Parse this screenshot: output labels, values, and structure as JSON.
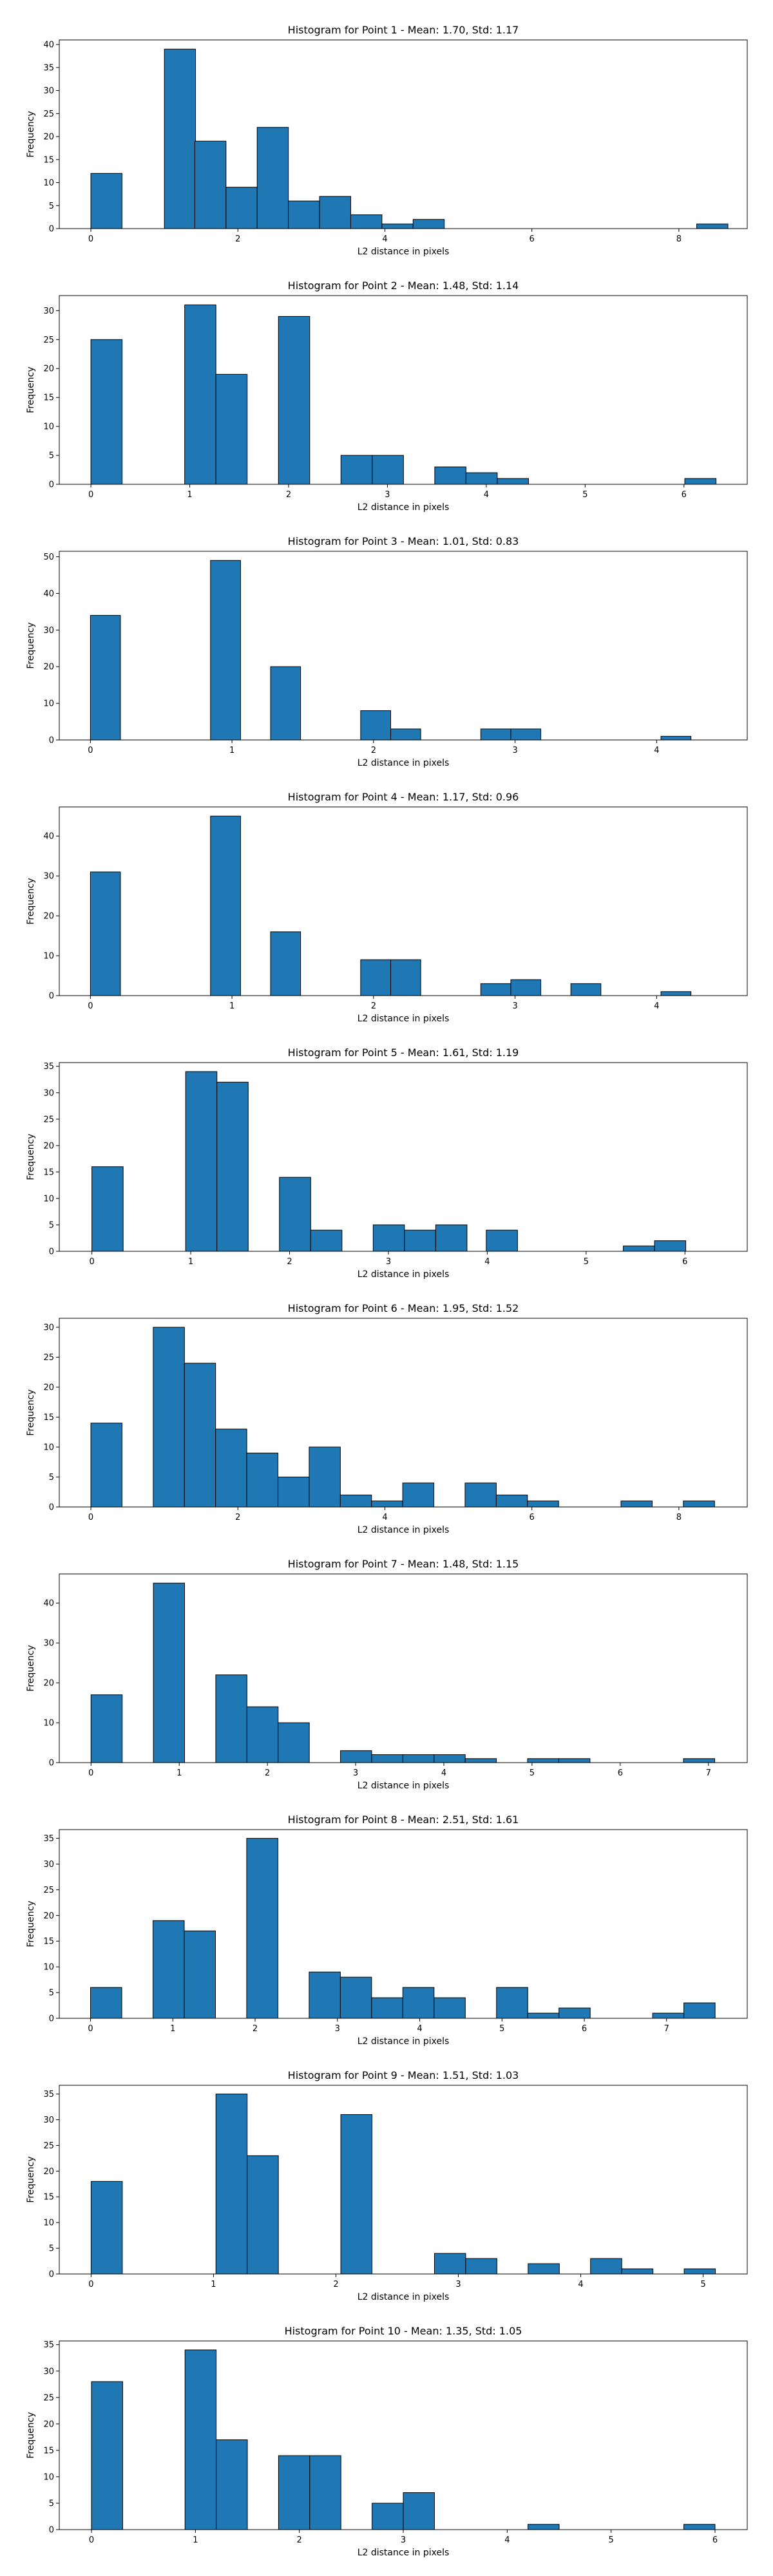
{
  "chart_data": [
    {
      "type": "bar",
      "title": "Histogram for Point 1 - Mean: 1.70, Std: 1.17",
      "xlabel": "L2 distance in pixels",
      "ylabel": "Frequency",
      "xlim": [
        -0.43,
        8.93
      ],
      "ylim": [
        0,
        41
      ],
      "xticks": [
        0,
        2,
        4,
        6,
        8
      ],
      "yticks": [
        0,
        5,
        10,
        15,
        20,
        25,
        30,
        35,
        40
      ],
      "bin_width": 0.4243,
      "color": "#1f77b4",
      "bars": [
        {
          "x": 0.0,
          "value": 12
        },
        {
          "x": 1.0,
          "value": 39
        },
        {
          "x": 1.4142,
          "value": 19
        },
        {
          "x": 1.8385,
          "value": 9
        },
        {
          "x": 2.2627,
          "value": 22
        },
        {
          "x": 2.687,
          "value": 6
        },
        {
          "x": 3.1113,
          "value": 7
        },
        {
          "x": 3.5355,
          "value": 3
        },
        {
          "x": 3.9598,
          "value": 1
        },
        {
          "x": 4.384,
          "value": 2
        },
        {
          "x": 8.2426,
          "value": 1
        }
      ]
    },
    {
      "type": "bar",
      "title": "Histogram for Point 2 - Mean: 1.48, Std: 1.14",
      "xlabel": "L2 distance in pixels",
      "ylabel": "Frequency",
      "xlim": [
        -0.32,
        6.64
      ],
      "ylim": [
        0,
        32.6
      ],
      "xticks": [
        0,
        1,
        2,
        3,
        4,
        5,
        6
      ],
      "yticks": [
        0,
        5,
        10,
        15,
        20,
        25,
        30
      ],
      "bin_width": 0.3162,
      "color": "#1f77b4",
      "bars": [
        {
          "x": 0.0,
          "value": 25
        },
        {
          "x": 0.9487,
          "value": 31
        },
        {
          "x": 1.2649,
          "value": 19
        },
        {
          "x": 1.8974,
          "value": 29
        },
        {
          "x": 2.5298,
          "value": 5
        },
        {
          "x": 2.846,
          "value": 5
        },
        {
          "x": 3.4785,
          "value": 3
        },
        {
          "x": 3.7947,
          "value": 2
        },
        {
          "x": 4.111,
          "value": 1
        },
        {
          "x": 6.0083,
          "value": 1
        }
      ]
    },
    {
      "type": "bar",
      "title": "Histogram for Point 3 - Mean: 1.01, Std: 0.83",
      "xlabel": "L2 distance in pixels",
      "ylabel": "Frequency",
      "xlim": [
        -0.22,
        4.64
      ],
      "ylim": [
        0,
        51.5
      ],
      "xticks": [
        0,
        1,
        2,
        3,
        4
      ],
      "yticks": [
        0,
        10,
        20,
        30,
        40,
        50
      ],
      "bin_width": 0.2121,
      "color": "#1f77b4",
      "bars": [
        {
          "x": 0.0,
          "value": 34
        },
        {
          "x": 0.8485,
          "value": 49
        },
        {
          "x": 1.2728,
          "value": 20
        },
        {
          "x": 1.9092,
          "value": 8
        },
        {
          "x": 2.1213,
          "value": 3
        },
        {
          "x": 2.7577,
          "value": 3
        },
        {
          "x": 2.9698,
          "value": 3
        },
        {
          "x": 4.0305,
          "value": 1
        }
      ]
    },
    {
      "type": "bar",
      "title": "Histogram for Point 4 - Mean: 1.17, Std: 0.96",
      "xlabel": "L2 distance in pixels",
      "ylabel": "Frequency",
      "xlim": [
        -0.22,
        4.64
      ],
      "ylim": [
        0,
        47.3
      ],
      "xticks": [
        0,
        1,
        2,
        3,
        4
      ],
      "yticks": [
        0,
        10,
        20,
        30,
        40
      ],
      "bin_width": 0.2121,
      "color": "#1f77b4",
      "bars": [
        {
          "x": 0.0,
          "value": 31
        },
        {
          "x": 0.8485,
          "value": 45
        },
        {
          "x": 1.2728,
          "value": 16
        },
        {
          "x": 1.9092,
          "value": 9
        },
        {
          "x": 2.1213,
          "value": 9
        },
        {
          "x": 2.7577,
          "value": 3
        },
        {
          "x": 2.9698,
          "value": 4
        },
        {
          "x": 3.3941,
          "value": 3
        },
        {
          "x": 4.0305,
          "value": 1
        }
      ]
    },
    {
      "type": "bar",
      "title": "Histogram for Point 5 - Mean: 1.61, Std: 1.19",
      "xlabel": "L2 distance in pixels",
      "ylabel": "Frequency",
      "xlim": [
        -0.33,
        6.63
      ],
      "ylim": [
        0,
        35.7
      ],
      "xticks": [
        0,
        1,
        2,
        3,
        4,
        5,
        6
      ],
      "yticks": [
        0,
        5,
        10,
        15,
        20,
        25,
        30,
        35
      ],
      "bin_width": 0.3162,
      "color": "#1f77b4",
      "bars": [
        {
          "x": 0.0,
          "value": 16
        },
        {
          "x": 0.9487,
          "value": 34
        },
        {
          "x": 1.2649,
          "value": 32
        },
        {
          "x": 1.8974,
          "value": 14
        },
        {
          "x": 2.2136,
          "value": 4
        },
        {
          "x": 2.846,
          "value": 5
        },
        {
          "x": 3.1623,
          "value": 4
        },
        {
          "x": 3.4785,
          "value": 5
        },
        {
          "x": 3.9896,
          "value": 4
        },
        {
          "x": 5.3758,
          "value": 1
        },
        {
          "x": 5.6921,
          "value": 2
        }
      ]
    },
    {
      "type": "bar",
      "title": "Histogram for Point 6 - Mean: 1.95, Std: 1.52",
      "xlabel": "L2 distance in pixels",
      "ylabel": "Frequency",
      "xlim": [
        -0.43,
        8.93
      ],
      "ylim": [
        0,
        31.5
      ],
      "xticks": [
        0,
        2,
        4,
        6,
        8
      ],
      "yticks": [
        0,
        5,
        10,
        15,
        20,
        25,
        30
      ],
      "bin_width": 0.4243,
      "color": "#1f77b4",
      "bars": [
        {
          "x": 0.0,
          "value": 14
        },
        {
          "x": 0.8485,
          "value": 30
        },
        {
          "x": 1.2728,
          "value": 24
        },
        {
          "x": 1.697,
          "value": 13
        },
        {
          "x": 2.1213,
          "value": 9
        },
        {
          "x": 2.5456,
          "value": 5
        },
        {
          "x": 2.9698,
          "value": 10
        },
        {
          "x": 3.3941,
          "value": 2
        },
        {
          "x": 3.8184,
          "value": 1
        },
        {
          "x": 4.2426,
          "value": 4
        },
        {
          "x": 5.0912,
          "value": 4
        },
        {
          "x": 5.5154,
          "value": 2
        },
        {
          "x": 5.9397,
          "value": 1
        },
        {
          "x": 7.2125,
          "value": 1
        },
        {
          "x": 8.061,
          "value": 1
        }
      ]
    },
    {
      "type": "bar",
      "title": "Histogram for Point 7 - Mean: 1.48, Std: 1.15",
      "xlabel": "L2 distance in pixels",
      "ylabel": "Frequency",
      "xlim": [
        -0.36,
        7.44
      ],
      "ylim": [
        0,
        47.3
      ],
      "xticks": [
        0,
        1,
        2,
        3,
        4,
        5,
        6,
        7
      ],
      "yticks": [
        0,
        10,
        20,
        30,
        40
      ],
      "bin_width": 0.3536,
      "color": "#1f77b4",
      "bars": [
        {
          "x": 0.0,
          "value": 17
        },
        {
          "x": 0.7071,
          "value": 45
        },
        {
          "x": 1.4142,
          "value": 22
        },
        {
          "x": 1.7678,
          "value": 14
        },
        {
          "x": 2.1213,
          "value": 10
        },
        {
          "x": 2.8284,
          "value": 3
        },
        {
          "x": 3.182,
          "value": 2
        },
        {
          "x": 3.5355,
          "value": 2
        },
        {
          "x": 3.8891,
          "value": 2
        },
        {
          "x": 4.2426,
          "value": 1
        },
        {
          "x": 4.9497,
          "value": 1
        },
        {
          "x": 5.3033,
          "value": 1
        },
        {
          "x": 6.7175,
          "value": 1
        }
      ]
    },
    {
      "type": "bar",
      "title": "Histogram for Point 8 - Mean: 2.51, Std: 1.61",
      "xlabel": "L2 distance in pixels",
      "ylabel": "Frequency",
      "xlim": [
        -0.38,
        7.98
      ],
      "ylim": [
        0,
        36.7
      ],
      "xticks": [
        0,
        1,
        2,
        3,
        4,
        5,
        6,
        7
      ],
      "yticks": [
        0,
        5,
        10,
        15,
        20,
        25,
        30,
        35
      ],
      "bin_width": 0.3795,
      "color": "#1f77b4",
      "bars": [
        {
          "x": 0.0,
          "value": 6
        },
        {
          "x": 0.7589,
          "value": 19
        },
        {
          "x": 1.1384,
          "value": 17
        },
        {
          "x": 1.8974,
          "value": 35
        },
        {
          "x": 2.6563,
          "value": 9
        },
        {
          "x": 3.0358,
          "value": 8
        },
        {
          "x": 3.4153,
          "value": 4
        },
        {
          "x": 3.7947,
          "value": 6
        },
        {
          "x": 4.1742,
          "value": 4
        },
        {
          "x": 4.9332,
          "value": 6
        },
        {
          "x": 5.3126,
          "value": 1
        },
        {
          "x": 5.6921,
          "value": 2
        },
        {
          "x": 6.8305,
          "value": 1
        },
        {
          "x": 7.21,
          "value": 3
        }
      ]
    },
    {
      "type": "bar",
      "title": "Histogram for Point 9 - Mean: 1.51, Std: 1.03",
      "xlabel": "L2 distance in pixels",
      "ylabel": "Frequency",
      "xlim": [
        -0.26,
        5.36
      ],
      "ylim": [
        0,
        36.7
      ],
      "xticks": [
        0,
        1,
        2,
        3,
        4,
        5
      ],
      "yticks": [
        0,
        5,
        10,
        15,
        20,
        25,
        30,
        35
      ],
      "bin_width": 0.255,
      "color": "#1f77b4",
      "bars": [
        {
          "x": 0.0,
          "value": 18
        },
        {
          "x": 1.02,
          "value": 35
        },
        {
          "x": 1.275,
          "value": 23
        },
        {
          "x": 2.04,
          "value": 31
        },
        {
          "x": 2.805,
          "value": 4
        },
        {
          "x": 3.06,
          "value": 3
        },
        {
          "x": 3.57,
          "value": 2
        },
        {
          "x": 4.08,
          "value": 3
        },
        {
          "x": 4.335,
          "value": 1
        },
        {
          "x": 4.845,
          "value": 1
        }
      ]
    },
    {
      "type": "bar",
      "title": "Histogram for Point 10 - Mean: 1.35, Std: 1.05",
      "xlabel": "L2 distance in pixels",
      "ylabel": "Frequency",
      "xlim": [
        -0.31,
        6.31
      ],
      "ylim": [
        0,
        35.7
      ],
      "xticks": [
        0,
        1,
        2,
        3,
        4,
        5,
        6
      ],
      "yticks": [
        0,
        5,
        10,
        15,
        20,
        25,
        30,
        35
      ],
      "bin_width": 0.3,
      "color": "#1f77b4",
      "bars": [
        {
          "x": 0.0,
          "value": 28
        },
        {
          "x": 0.9,
          "value": 34
        },
        {
          "x": 1.2,
          "value": 17
        },
        {
          "x": 1.8,
          "value": 14
        },
        {
          "x": 2.1,
          "value": 14
        },
        {
          "x": 2.7,
          "value": 5
        },
        {
          "x": 3.0,
          "value": 7
        },
        {
          "x": 4.2,
          "value": 1
        },
        {
          "x": 5.7,
          "value": 1
        }
      ]
    }
  ]
}
